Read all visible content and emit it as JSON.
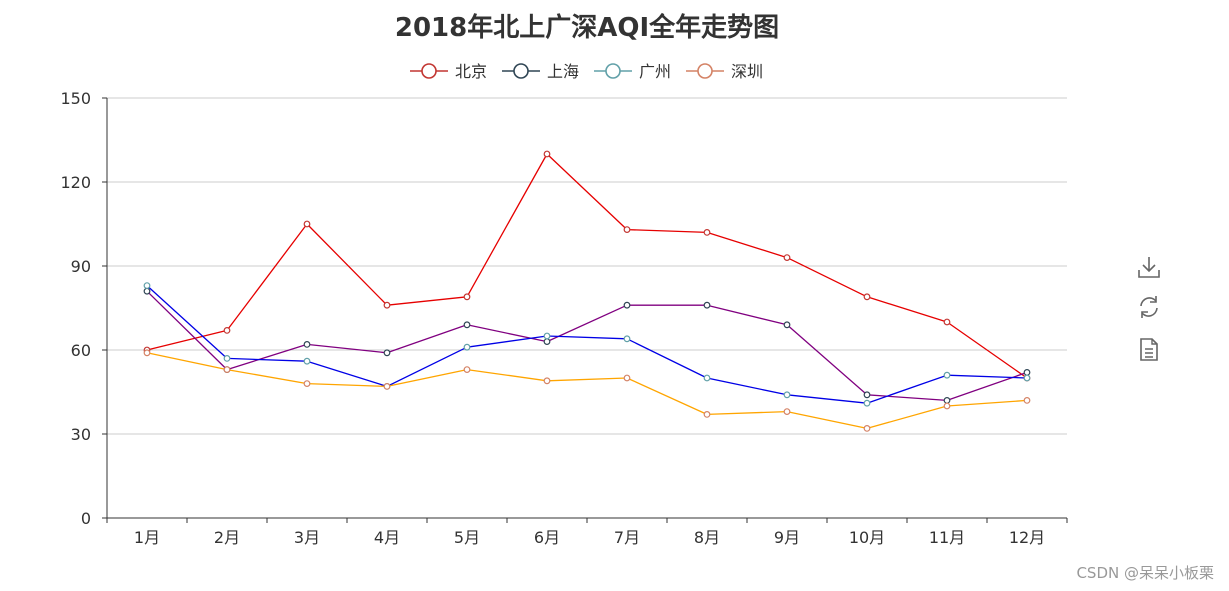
{
  "chart_data": {
    "type": "line",
    "title": "2018年北上广深AQI全年走势图",
    "categories": [
      "1月",
      "2月",
      "3月",
      "4月",
      "5月",
      "6月",
      "7月",
      "8月",
      "9月",
      "10月",
      "11月",
      "12月"
    ],
    "series": [
      {
        "name": "北京",
        "color": "#e60000",
        "values": [
          60,
          67,
          105,
          76,
          79,
          130,
          103,
          102,
          93,
          79,
          70,
          50
        ]
      },
      {
        "name": "上海",
        "color": "#800080",
        "values": [
          81,
          53,
          62,
          59,
          69,
          63,
          76,
          76,
          69,
          44,
          42,
          52
        ]
      },
      {
        "name": "广州",
        "color": "#0000e6",
        "values": [
          83,
          57,
          56,
          47,
          61,
          65,
          64,
          50,
          44,
          41,
          51,
          50
        ]
      },
      {
        "name": "深圳",
        "color": "#ffa500",
        "values": [
          59,
          53,
          48,
          47,
          53,
          49,
          50,
          37,
          38,
          32,
          40,
          42
        ]
      }
    ],
    "legend_marker_colors": [
      "#c23531",
      "#2f4554",
      "#61a0a8",
      "#d48265"
    ],
    "ylim": [
      0,
      150
    ],
    "yticks": [
      0,
      30,
      60,
      90,
      120,
      150
    ],
    "xlabel": "",
    "ylabel": "",
    "grid": true,
    "legend_position": "top-center"
  },
  "toolbox": {
    "items": [
      {
        "name": "save-as-image-icon"
      },
      {
        "name": "restore-icon"
      },
      {
        "name": "data-view-icon"
      }
    ]
  },
  "watermark": "CSDN @呆呆小板栗"
}
